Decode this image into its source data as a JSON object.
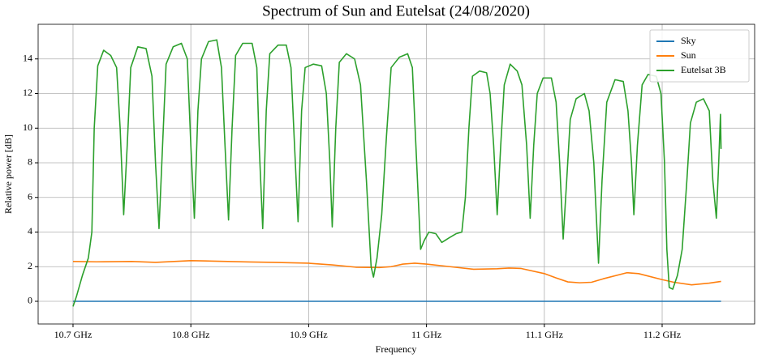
{
  "chart_data": {
    "type": "line",
    "title": "Spectrum of Sun and Eutelsat (24/08/2020)",
    "x_label": "Frequency",
    "y_label": "Relative power [dB]",
    "xlim": [
      10.6704,
      11.2785
    ],
    "ylim": [
      -1.31,
      16.0
    ],
    "xticks": [
      {
        "value": 10.7,
        "label": "10.7 GHz"
      },
      {
        "value": 10.8,
        "label": "10.8 GHz"
      },
      {
        "value": 10.9,
        "label": "10.9 GHz"
      },
      {
        "value": 11.0,
        "label": "11 GHz"
      },
      {
        "value": 11.1,
        "label": "11.1 GHz"
      },
      {
        "value": 11.2,
        "label": "11.2 GHz"
      }
    ],
    "yticks": [
      0,
      2,
      4,
      6,
      8,
      10,
      12,
      14
    ],
    "grid": true,
    "legend": "upper right",
    "series": [
      {
        "name": "Sky",
        "color": "#1f77b4",
        "x": [
          10.7,
          11.25
        ],
        "values": [
          0,
          0
        ]
      },
      {
        "name": "Sun",
        "color": "#ff7f0e",
        "x": [
          10.7,
          10.72,
          10.75,
          10.77,
          10.8,
          10.82,
          10.85,
          10.87,
          10.9,
          10.92,
          10.94,
          10.96,
          10.97,
          10.98,
          10.99,
          11.0,
          11.02,
          11.04,
          11.06,
          11.07,
          11.08,
          11.1,
          11.11,
          11.12,
          11.13,
          11.14,
          11.15,
          11.17,
          11.18,
          11.2,
          11.21,
          11.225,
          11.24,
          11.25
        ],
        "values": [
          2.3,
          2.28,
          2.3,
          2.25,
          2.35,
          2.32,
          2.27,
          2.25,
          2.2,
          2.1,
          1.97,
          1.95,
          2.0,
          2.15,
          2.2,
          2.15,
          2.0,
          1.85,
          1.88,
          1.92,
          1.9,
          1.6,
          1.35,
          1.12,
          1.07,
          1.1,
          1.3,
          1.65,
          1.6,
          1.25,
          1.1,
          0.95,
          1.05,
          1.15
        ]
      },
      {
        "name": "Eutelsat 3B",
        "color": "#2ca02c",
        "x": [
          10.7,
          10.703,
          10.708,
          10.713,
          10.716,
          10.718,
          10.721,
          10.726,
          10.732,
          10.737,
          10.74,
          10.743,
          10.746,
          10.749,
          10.755,
          10.762,
          10.767,
          10.77,
          10.773,
          10.776,
          10.779,
          10.785,
          10.792,
          10.797,
          10.8,
          10.803,
          10.806,
          10.809,
          10.815,
          10.822,
          10.826,
          10.829,
          10.832,
          10.835,
          10.838,
          10.844,
          10.852,
          10.856,
          10.858,
          10.861,
          10.864,
          10.867,
          10.874,
          10.881,
          10.885,
          10.888,
          10.891,
          10.894,
          10.897,
          10.904,
          10.911,
          10.915,
          10.918,
          10.92,
          10.923,
          10.926,
          10.932,
          10.939,
          10.944,
          10.949,
          10.953,
          10.955,
          10.958,
          10.962,
          10.966,
          10.97,
          10.977,
          10.984,
          10.988,
          10.991,
          10.995,
          10.998,
          11.002,
          11.008,
          11.013,
          11.02,
          11.025,
          11.03,
          11.033,
          11.036,
          11.039,
          11.045,
          11.051,
          11.054,
          11.057,
          11.06,
          11.063,
          11.066,
          11.071,
          11.077,
          11.081,
          11.085,
          11.088,
          11.091,
          11.094,
          11.099,
          11.106,
          11.11,
          11.113,
          11.116,
          11.119,
          11.122,
          11.127,
          11.134,
          11.138,
          11.142,
          11.146,
          11.149,
          11.153,
          11.16,
          11.167,
          11.171,
          11.174,
          11.176,
          11.179,
          11.183,
          11.188,
          11.195,
          11.199,
          11.202,
          11.204,
          11.206,
          11.209,
          11.213,
          11.217,
          11.221,
          11.224,
          11.229,
          11.235,
          11.24,
          11.243,
          11.246,
          11.248,
          11.2495,
          11.25
        ],
        "values": [
          -0.3,
          0.3,
          1.5,
          2.5,
          4,
          10,
          13.6,
          14.5,
          14.2,
          13.5,
          10,
          5.0,
          9,
          13.5,
          14.7,
          14.6,
          13,
          8,
          4.2,
          9,
          13.7,
          14.7,
          14.9,
          14,
          9,
          4.8,
          11,
          14,
          15.0,
          15.1,
          13.5,
          9,
          4.7,
          10,
          14.2,
          14.9,
          14.9,
          13.5,
          9,
          4.2,
          11,
          14.3,
          14.8,
          14.8,
          13.5,
          9,
          4.6,
          11,
          13.5,
          13.7,
          13.6,
          12,
          8,
          4.3,
          10,
          13.8,
          14.3,
          14.0,
          12.5,
          7,
          2,
          1.4,
          2.5,
          5,
          9.5,
          13.5,
          14.1,
          14.3,
          13.5,
          9,
          3.0,
          3.5,
          4.0,
          3.9,
          3.4,
          3.7,
          3.9,
          4.0,
          6,
          10,
          13.0,
          13.3,
          13.2,
          12.0,
          9,
          5.0,
          9,
          12.5,
          13.7,
          13.3,
          12.5,
          9,
          4.8,
          9,
          12,
          12.9,
          12.9,
          11.5,
          8,
          3.6,
          7,
          10.5,
          11.7,
          12.0,
          11.0,
          8,
          2.2,
          7,
          11.5,
          12.8,
          12.7,
          11.0,
          8,
          5.0,
          9,
          12.5,
          13.1,
          13.0,
          12,
          8,
          3,
          0.8,
          0.7,
          1.5,
          3,
          7,
          10.3,
          11.5,
          11.7,
          11,
          7,
          4.8,
          8,
          10.8,
          8.8
        ]
      }
    ]
  }
}
